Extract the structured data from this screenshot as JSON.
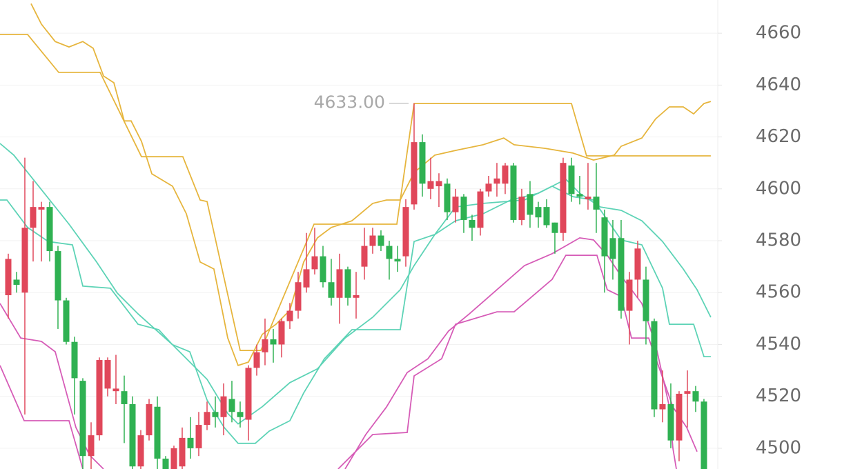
{
  "chart_data": {
    "type": "candlestick",
    "xlim": [
      -1,
      85.67
    ],
    "ylim": [
      4492,
      4672.8
    ],
    "yticks": [
      4500,
      4520,
      4540,
      4560,
      4580,
      4600,
      4620,
      4640,
      4660
    ],
    "grid": true,
    "up_color": "#e0475a",
    "down_color": "#2fb152",
    "candles": {
      "open": [
        4559,
        4565,
        4560,
        4585,
        4592,
        4593,
        4576,
        4557,
        4541,
        4526,
        4497,
        4505,
        4523,
        4522,
        4522,
        4517,
        4493,
        4505,
        4516,
        4496,
        4492,
        4493,
        4504,
        4500,
        4509,
        4514,
        4512,
        4519,
        4514,
        4511,
        4531,
        4537,
        4542,
        4540,
        4549,
        4553,
        4562,
        4569,
        4574,
        4564,
        4558,
        4569,
        4558,
        4570,
        4578,
        4582,
        4578,
        4573,
        4574,
        4594,
        4618,
        4600,
        4601,
        4602,
        4591,
        4597,
        4588,
        4585,
        4599,
        4602,
        4602,
        4609,
        4588,
        4598,
        4593,
        4593,
        4587,
        4583,
        4609,
        4598,
        4596,
        4597,
        4589,
        4581,
        4581,
        4553,
        4565,
        4565,
        4549,
        4515,
        4517,
        4503,
        4521,
        4522,
        4518
      ],
      "high": [
        4575,
        4568,
        4612,
        4603,
        4595,
        4595,
        4578,
        4558,
        4543,
        4527,
        4510,
        4535,
        4535,
        4536,
        4528,
        4520,
        4507,
        4519,
        4520,
        4497,
        4501,
        4508,
        4512,
        4514,
        4518,
        4520,
        4525,
        4526,
        4518,
        4532,
        4540,
        4550,
        4546,
        4550,
        4556,
        4568,
        4583,
        4585,
        4578,
        4573,
        4575,
        4570,
        4568,
        4585,
        4585,
        4584,
        4580,
        4578,
        4596,
        4633,
        4621,
        4612,
        4606,
        4604,
        4600,
        4598,
        4590,
        4600,
        4605,
        4610,
        4610,
        4610,
        4600,
        4603,
        4595,
        4596,
        4587,
        4612,
        4612,
        4605,
        4610,
        4610,
        4592,
        4588,
        4588,
        4568,
        4580,
        4570,
        4550,
        4530,
        4525,
        4522,
        4530,
        4524,
        4519
      ],
      "low": [
        4550,
        4560,
        4513,
        4572,
        4572,
        4572,
        4546,
        4540,
        4513,
        4490,
        4490,
        4503,
        4520,
        4517,
        4502,
        4490,
        4490,
        4503,
        4490,
        4491,
        4491,
        4492,
        4496,
        4497,
        4507,
        4508,
        4505,
        4510,
        4508,
        4503,
        4528,
        4532,
        4533,
        4535,
        4546,
        4550,
        4560,
        4567,
        4562,
        4555,
        4548,
        4555,
        4550,
        4565,
        4575,
        4576,
        4565,
        4568,
        4570,
        4592,
        4597,
        4596,
        4593,
        4588,
        4587,
        4583,
        4580,
        4582,
        4597,
        4597,
        4598,
        4587,
        4586,
        4585,
        4585,
        4585,
        4575,
        4580,
        4595,
        4594,
        4592,
        4583,
        4560,
        4565,
        4550,
        4540,
        4558,
        4540,
        4512,
        4510,
        4500,
        4495,
        4508,
        4514,
        4490
      ],
      "close": [
        4573,
        4563,
        4585,
        4593,
        4593,
        4576,
        4557,
        4541,
        4527,
        4497,
        4505,
        4534,
        4534,
        4523,
        4517,
        4493,
        4505,
        4517,
        4496,
        4492,
        4500,
        4504,
        4500,
        4509,
        4514,
        4512,
        4520,
        4514,
        4512,
        4531,
        4537,
        4542,
        4540,
        4549,
        4553,
        4564,
        4569,
        4574,
        4564,
        4558,
        4569,
        4558,
        4559,
        4578,
        4582,
        4578,
        4573,
        4572,
        4593,
        4618,
        4602,
        4603,
        4603,
        4591,
        4597,
        4588,
        4585,
        4599,
        4602,
        4604,
        4609,
        4588,
        4597,
        4590,
        4589,
        4586,
        4583,
        4610,
        4598,
        4597,
        4597,
        4592,
        4574,
        4573,
        4553,
        4565,
        4577,
        4549,
        4515,
        4517,
        4503,
        4521,
        4522,
        4518,
        4492
      ]
    },
    "series": [
      {
        "color": "#e6b53d",
        "x": [
          -1,
          2.33,
          6.08,
          11.08,
          16.08,
          21.08,
          23.17,
          24,
          28,
          30.5,
          36.92,
          46.92,
          49,
          68,
          69.83,
          84.83
        ],
        "values": [
          4659.5,
          4659.5,
          4644.9,
          4644.9,
          4612.4,
          4612.4,
          4595.7,
          4595.1,
          4537.7,
          4537.7,
          4586.4,
          4586.4,
          4632.9,
          4632.9,
          4612.7,
          4612.7
        ]
      },
      {
        "color": "#e6b53d",
        "x": [
          2.75,
          4,
          5.67,
          7.33,
          9,
          10.25,
          11.5,
          12.75,
          14,
          14.83,
          16.08,
          17.33,
          19.83,
          21.5,
          23.17,
          24.83,
          26.5,
          27.75,
          29,
          30.67,
          32.33,
          34,
          35.67,
          37.33,
          39,
          41.5,
          44,
          45.67,
          47.33,
          49,
          51.5,
          54,
          57.33,
          59.83,
          61.08,
          64.83,
          68.17,
          70.67,
          73.17,
          74,
          76.5,
          78.17,
          79.83,
          81.5,
          82.75,
          84,
          84.83
        ],
        "values": [
          4671.4,
          4663.5,
          4656.8,
          4654.7,
          4656.8,
          4654.2,
          4643.5,
          4640.9,
          4626.2,
          4626.2,
          4618.3,
          4605.8,
          4601.0,
          4590.4,
          4571.8,
          4569.1,
          4542.5,
          4531.9,
          4533.2,
          4543.9,
          4547.8,
          4553.2,
          4571.8,
          4581.1,
          4585.1,
          4587.7,
          4594.4,
          4595.7,
          4595.7,
          4606.3,
          4613.0,
          4614.8,
          4617.0,
          4619.6,
          4617.0,
          4615.6,
          4613.8,
          4611.1,
          4613.0,
          4616.4,
          4619.6,
          4627.0,
          4631.6,
          4631.6,
          4628.9,
          4632.9,
          4633.7
        ]
      },
      {
        "color": "#5dd3b6",
        "x": [
          -1,
          -0.17,
          2.33,
          4.83,
          7.75,
          9,
          12.33,
          15.67,
          18.17,
          19.83,
          21.92,
          24,
          26.08,
          27.75,
          29.83,
          31.5,
          34,
          35.67,
          38.17,
          41.5,
          47.33,
          49,
          51.5,
          54,
          57.33,
          62.33,
          65.67,
          68.17,
          70.67,
          74,
          76.5,
          79,
          79.83,
          82.75,
          84,
          84.83
        ],
        "values": [
          4595.7,
          4595.7,
          4585.1,
          4579.7,
          4578.4,
          4562.5,
          4561.7,
          4547.8,
          4545.7,
          4539.9,
          4537.2,
          4518.6,
          4508.0,
          4501.9,
          4501.9,
          4506.6,
          4510.6,
          4521.3,
          4534.5,
          4545.7,
          4545.7,
          4579.7,
          4582.4,
          4593.0,
          4594.4,
          4595.7,
          4601.0,
          4597.0,
          4595.7,
          4580.3,
          4578.4,
          4561.7,
          4547.8,
          4547.8,
          4535.3,
          4535.3
        ]
      },
      {
        "color": "#5dd3b6",
        "x": [
          -1,
          0.67,
          4,
          7.33,
          10.67,
          13.17,
          15.67,
          19.83,
          24,
          26.5,
          27.75,
          30.67,
          34,
          37.33,
          40.67,
          44,
          47.33,
          49,
          51.5,
          54,
          57.33,
          60.67,
          64,
          65.67,
          67.33,
          69,
          71.5,
          74,
          76.5,
          79,
          81.5,
          83.17,
          84.83
        ],
        "values": [
          4617.5,
          4613.0,
          4599.7,
          4586.4,
          4571.8,
          4559.8,
          4551.8,
          4539.9,
          4526.6,
          4513.4,
          4509.4,
          4516.0,
          4525.3,
          4530.6,
          4542.5,
          4550.5,
          4561.1,
          4570.4,
          4582.4,
          4587.7,
          4590.4,
          4595.7,
          4598.3,
          4601.0,
          4603.7,
          4598.3,
          4593.0,
          4591.7,
          4587.7,
          4579.7,
          4569.1,
          4561.1,
          4550.5
        ]
      },
      {
        "color": "#d65cb7",
        "x": [
          -1,
          1.92,
          7.33,
          9,
          24,
          39.83,
          44,
          48.17,
          49,
          52.33,
          54,
          59,
          61.08,
          65.67,
          67.33,
          71.08,
          72.33,
          74,
          75.25,
          77.33,
          80.25,
          81.92,
          83.17
        ],
        "values": [
          4531.9,
          4510.6,
          4510.6,
          4492.0,
          null,
          4492.0,
          4505.3,
          4506.1,
          4527.9,
          4534.5,
          4547.8,
          4552.6,
          4552.6,
          4565.1,
          4574.4,
          4574.4,
          4561.1,
          4558.5,
          4542.5,
          4542.5,
          4515.9,
          4508.0,
          4498.7
        ]
      },
      {
        "color": "#d65cb7",
        "x": [
          -1,
          1.5,
          4,
          5.67,
          8.17,
          9.83,
          11.5,
          24,
          40.67,
          43.17,
          45.67,
          48.17,
          50.67,
          53.17,
          55.67,
          59,
          62.33,
          65.67,
          69,
          70.67,
          72.33,
          74,
          76.5,
          78.17,
          79.83,
          80.25,
          80.67
        ],
        "values": [
          4555.8,
          4542.5,
          4541.2,
          4537.2,
          4508.0,
          4497.3,
          4492.0,
          null,
          4492.0,
          4505.3,
          4515.9,
          4529.2,
          4534.5,
          4545.2,
          4551.8,
          4561.1,
          4570.4,
          4575.0,
          4581.1,
          4580.3,
          4574.4,
          4566.4,
          4555.8,
          4539.9,
          4515.9,
          4500.0,
          4492.0
        ]
      }
    ],
    "annotation": {
      "label": "4633.00",
      "value": 4633,
      "x": 49
    }
  }
}
